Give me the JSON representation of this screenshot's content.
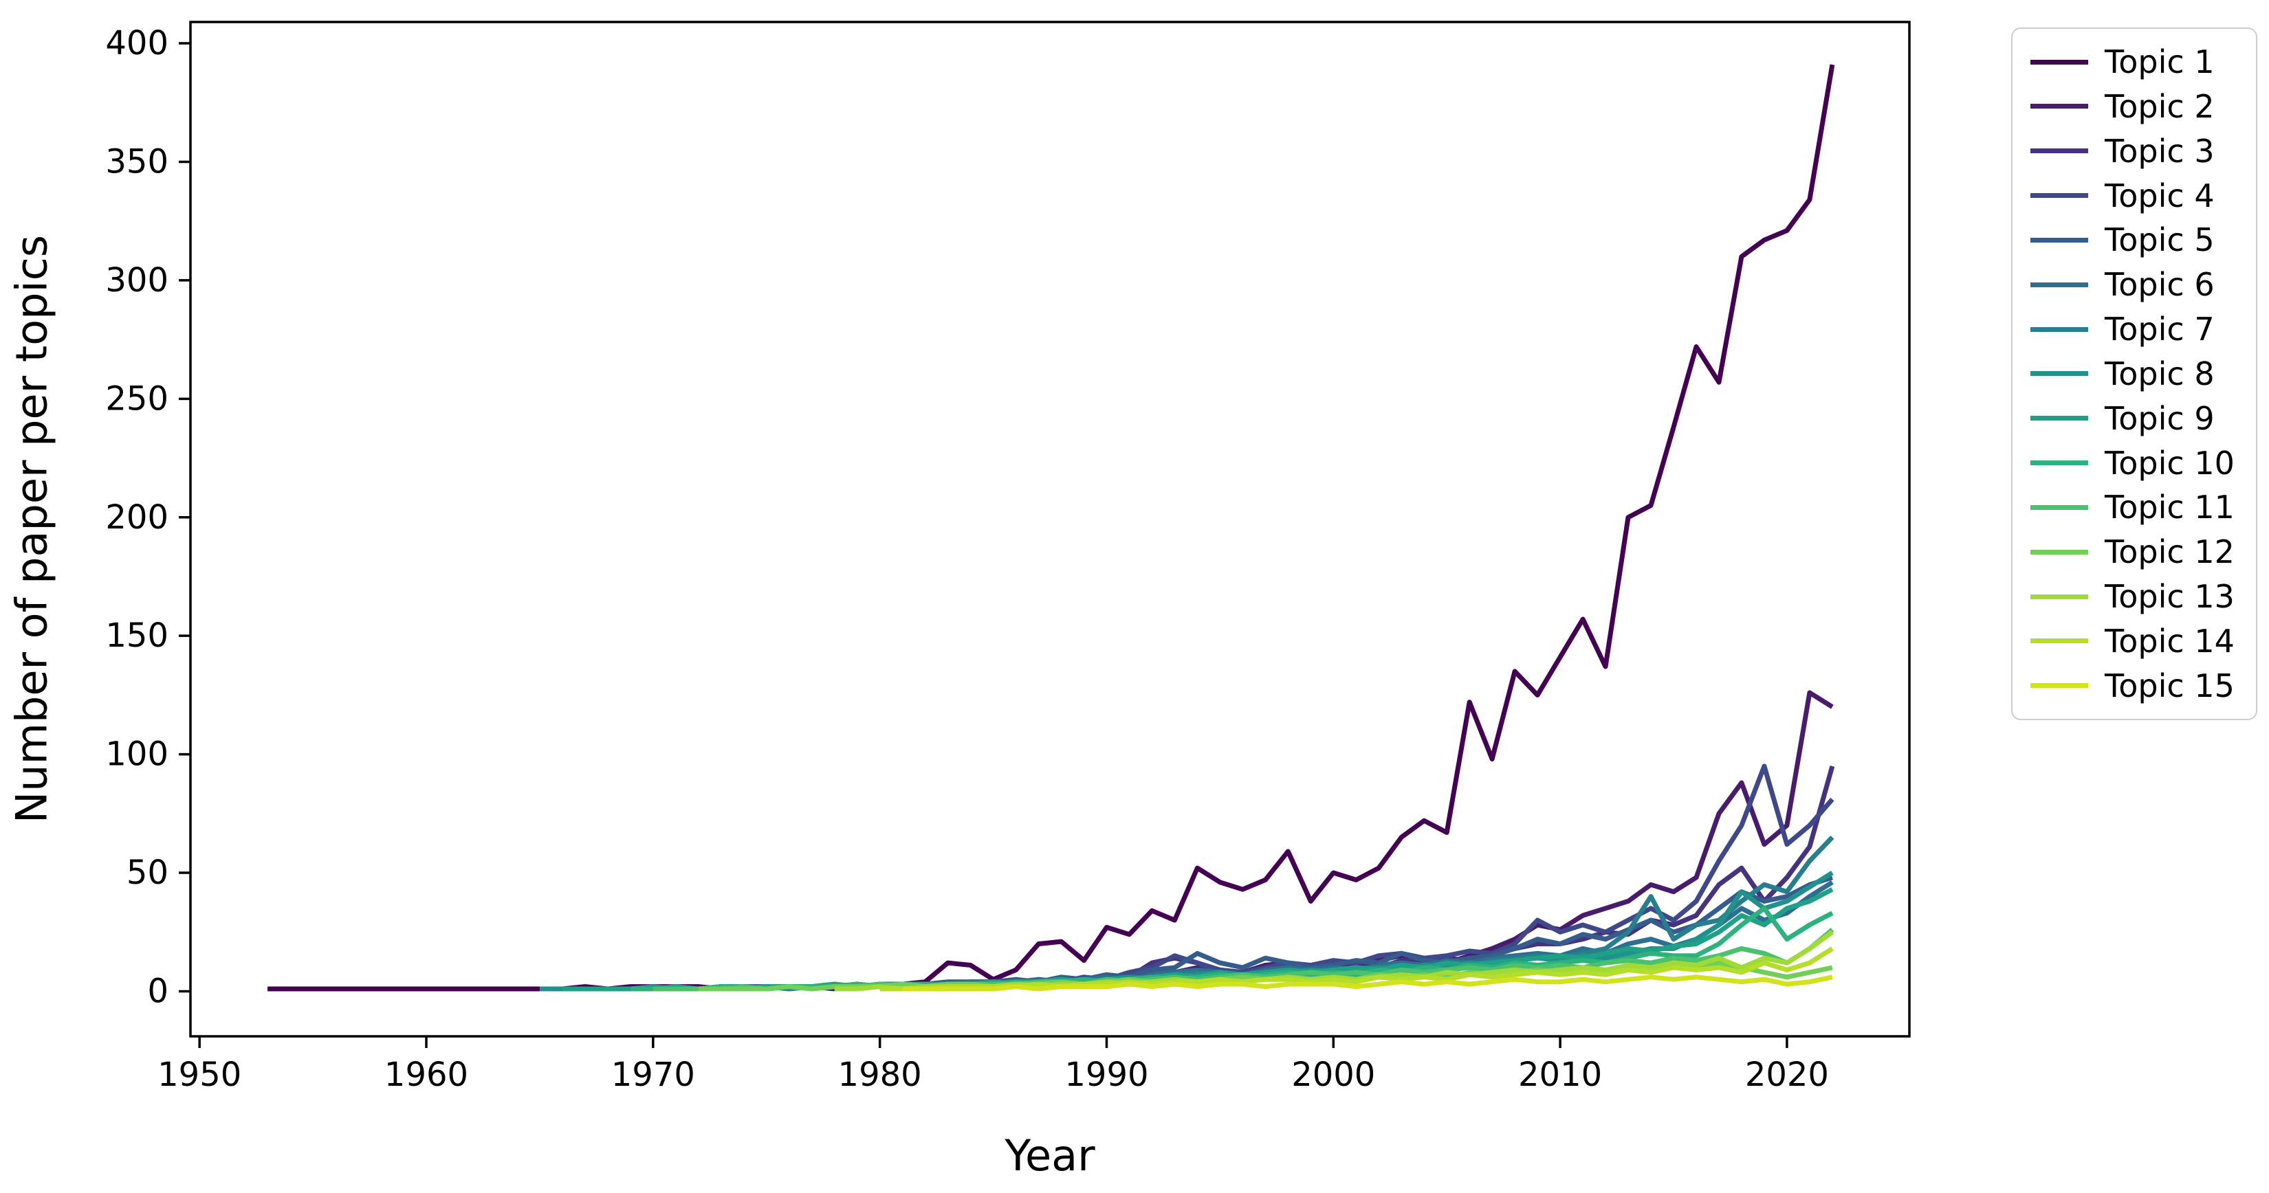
{
  "figure": {
    "background": "#ffffff",
    "axis_color": "#000000",
    "legend_border_color": "#cccccc"
  },
  "chart_data": {
    "type": "line",
    "title": "",
    "xlabel": "Year",
    "ylabel": "Number of paper per topics",
    "grid": false,
    "legend_position": "outside-right-top",
    "xlim": [
      1949.6,
      2025.4
    ],
    "ylim": [
      -19,
      409
    ],
    "xticks": [
      1950,
      1960,
      1970,
      1980,
      1990,
      2000,
      2010,
      2020
    ],
    "yticks": [
      0,
      50,
      100,
      150,
      200,
      250,
      300,
      350,
      400
    ],
    "series": [
      {
        "name": "Topic 1",
        "color": "#440154",
        "start_year": 1953,
        "values": [
          1,
          1,
          1,
          1,
          1,
          1,
          1,
          1,
          1,
          1,
          1,
          1,
          1,
          1,
          2,
          1,
          2,
          2,
          2,
          2,
          1,
          1,
          1,
          2,
          2,
          2,
          3,
          2,
          3,
          4,
          12,
          11,
          5,
          9,
          20,
          21,
          13,
          27,
          24,
          34,
          30,
          52,
          46,
          43,
          47,
          59,
          38,
          50,
          47,
          52,
          65,
          72,
          67,
          122,
          98,
          135,
          125,
          141,
          157,
          137,
          200,
          205,
          238,
          272,
          257,
          310,
          317,
          321,
          334,
          391
        ]
      },
      {
        "name": "Topic 2",
        "color": "#481b6d",
        "start_year": 1965,
        "values": [
          1,
          1,
          1,
          1,
          1,
          2,
          1,
          1,
          2,
          1,
          1,
          2,
          2,
          1,
          2,
          2,
          2,
          3,
          2,
          3,
          3,
          4,
          3,
          5,
          4,
          6,
          5,
          7,
          8,
          10,
          9,
          8,
          11,
          12,
          10,
          12,
          11,
          13,
          15,
          14,
          12,
          15,
          18,
          22,
          28,
          26,
          32,
          35,
          38,
          45,
          42,
          48,
          75,
          88,
          62,
          70,
          126,
          120
        ]
      },
      {
        "name": "Topic 3",
        "color": "#46327e",
        "start_year": 1967,
        "values": [
          1,
          1,
          1,
          1,
          2,
          1,
          1,
          2,
          1,
          2,
          2,
          2,
          2,
          3,
          2,
          2,
          3,
          3,
          3,
          4,
          4,
          5,
          4,
          5,
          6,
          12,
          14,
          12,
          6,
          7,
          8,
          9,
          10,
          9,
          11,
          10,
          13,
          12,
          14,
          13,
          16,
          18,
          20,
          20,
          22,
          25,
          24,
          30,
          28,
          32,
          45,
          52,
          38,
          48,
          61,
          95
        ]
      },
      {
        "name": "Topic 4",
        "color": "#3f4889",
        "start_year": 1968,
        "values": [
          1,
          1,
          1,
          2,
          1,
          1,
          2,
          2,
          1,
          2,
          2,
          3,
          2,
          2,
          3,
          3,
          4,
          4,
          3,
          5,
          4,
          6,
          5,
          8,
          10,
          15,
          12,
          9,
          8,
          10,
          12,
          11,
          13,
          12,
          15,
          16,
          14,
          15,
          17,
          16,
          20,
          30,
          25,
          28,
          25,
          30,
          35,
          30,
          38,
          55,
          70,
          95,
          62,
          70,
          81
        ]
      },
      {
        "name": "Topic 5",
        "color": "#365c8d",
        "start_year": 1969,
        "values": [
          1,
          1,
          1,
          1,
          2,
          1,
          2,
          2,
          2,
          3,
          2,
          3,
          3,
          3,
          4,
          4,
          4,
          5,
          4,
          6,
          5,
          7,
          6,
          9,
          10,
          16,
          12,
          10,
          14,
          12,
          10,
          11,
          13,
          12,
          16,
          13,
          12,
          14,
          15,
          18,
          22,
          20,
          24,
          22,
          26,
          30,
          25,
          28,
          35,
          42,
          38,
          40,
          45,
          48
        ]
      },
      {
        "name": "Topic 6",
        "color": "#2e6e8e",
        "start_year": 1970,
        "values": [
          1,
          1,
          1,
          2,
          1,
          1,
          2,
          2,
          2,
          3,
          2,
          3,
          3,
          3,
          4,
          3,
          4,
          5,
          4,
          5,
          6,
          5,
          7,
          8,
          9,
          8,
          7,
          9,
          10,
          9,
          10,
          9,
          11,
          12,
          11,
          13,
          12,
          14,
          15,
          16,
          15,
          18,
          16,
          20,
          22,
          19,
          22,
          28,
          35,
          30,
          33,
          40,
          46
        ]
      },
      {
        "name": "Topic 7",
        "color": "#277f8e",
        "start_year": 1971,
        "values": [
          1,
          1,
          1,
          1,
          2,
          1,
          2,
          2,
          2,
          3,
          3,
          2,
          3,
          3,
          3,
          4,
          3,
          5,
          4,
          5,
          6,
          5,
          7,
          8,
          7,
          6,
          8,
          9,
          8,
          9,
          8,
          10,
          11,
          10,
          12,
          11,
          13,
          14,
          15,
          14,
          16,
          18,
          25,
          40,
          22,
          28,
          30,
          38,
          45,
          42,
          55,
          65
        ]
      },
      {
        "name": "Topic 8",
        "color": "#21918c",
        "start_year": 1965,
        "values": [
          1,
          1,
          1,
          1,
          1,
          2,
          1,
          1,
          2,
          2,
          1,
          2,
          2,
          2,
          3,
          2,
          2,
          3,
          3,
          3,
          3,
          4,
          4,
          5,
          4,
          5,
          6,
          5,
          6,
          7,
          8,
          6,
          7,
          8,
          9,
          8,
          9,
          10,
          9,
          11,
          10,
          12,
          11,
          13,
          14,
          13,
          15,
          14,
          16,
          18,
          18,
          22,
          28,
          42,
          35,
          38,
          44,
          50
        ]
      },
      {
        "name": "Topic 9",
        "color": "#1fa187",
        "start_year": 1966,
        "values": [
          1,
          1,
          1,
          1,
          1,
          2,
          1,
          2,
          1,
          2,
          2,
          2,
          3,
          2,
          3,
          3,
          2,
          3,
          3,
          4,
          3,
          4,
          5,
          4,
          5,
          5,
          6,
          7,
          6,
          8,
          7,
          8,
          9,
          8,
          9,
          10,
          9,
          11,
          10,
          12,
          11,
          12,
          13,
          14,
          15,
          14,
          16,
          18,
          17,
          19,
          20,
          25,
          32,
          28,
          35,
          38,
          43
        ]
      },
      {
        "name": "Topic 10",
        "color": "#2db27d",
        "start_year": 1969,
        "values": [
          1,
          1,
          1,
          1,
          2,
          1,
          1,
          2,
          2,
          2,
          3,
          2,
          3,
          3,
          2,
          3,
          3,
          4,
          3,
          4,
          5,
          4,
          5,
          6,
          5,
          6,
          7,
          6,
          7,
          8,
          7,
          8,
          7,
          9,
          8,
          10,
          9,
          11,
          10,
          12,
          11,
          12,
          13,
          12,
          14,
          16,
          15,
          15,
          20,
          28,
          35,
          22,
          28,
          33
        ]
      },
      {
        "name": "Topic 11",
        "color": "#4ac16d",
        "start_year": 1970,
        "values": [
          1,
          1,
          1,
          1,
          2,
          1,
          2,
          1,
          2,
          2,
          3,
          2,
          2,
          3,
          3,
          3,
          3,
          4,
          4,
          3,
          5,
          4,
          5,
          6,
          5,
          6,
          7,
          6,
          7,
          8,
          7,
          8,
          7,
          9,
          8,
          9,
          10,
          9,
          11,
          10,
          11,
          10,
          12,
          13,
          12,
          14,
          13,
          15,
          18,
          16,
          12,
          18,
          26
        ]
      },
      {
        "name": "Topic 12",
        "color": "#70cf57",
        "start_year": 1972,
        "values": [
          1,
          1,
          1,
          1,
          2,
          1,
          2,
          2,
          2,
          3,
          2,
          3,
          3,
          2,
          3,
          3,
          4,
          3,
          4,
          5,
          4,
          5,
          4,
          5,
          6,
          5,
          6,
          5,
          6,
          5,
          7,
          6,
          7,
          6,
          8,
          7,
          8,
          9,
          8,
          9,
          8,
          10,
          9,
          11,
          10,
          12,
          10,
          8,
          6,
          8,
          10
        ]
      },
      {
        "name": "Topic 13",
        "color": "#a0da39",
        "start_year": 1978,
        "values": [
          1,
          1,
          2,
          1,
          2,
          2,
          2,
          2,
          3,
          2,
          3,
          3,
          4,
          3,
          4,
          5,
          4,
          5,
          4,
          5,
          6,
          5,
          6,
          5,
          6,
          7,
          6,
          8,
          7,
          8,
          9,
          8,
          9,
          10,
          9,
          11,
          10,
          12,
          11,
          14,
          10,
          14,
          12,
          18,
          25
        ]
      },
      {
        "name": "Topic 14",
        "color": "#b5de2b",
        "start_year": 1980,
        "values": [
          1,
          1,
          1,
          2,
          2,
          2,
          2,
          3,
          2,
          3,
          3,
          4,
          3,
          4,
          4,
          5,
          4,
          5,
          5,
          4,
          5,
          4,
          6,
          5,
          6,
          5,
          7,
          6,
          7,
          8,
          7,
          8,
          7,
          9,
          8,
          10,
          9,
          10,
          8,
          12,
          9,
          12,
          18
        ]
      },
      {
        "name": "Topic 15",
        "color": "#d2e21b",
        "start_year": 1981,
        "values": [
          1,
          1,
          1,
          1,
          1,
          2,
          1,
          2,
          2,
          2,
          3,
          2,
          3,
          2,
          3,
          3,
          2,
          3,
          3,
          3,
          2,
          3,
          4,
          3,
          4,
          3,
          4,
          5,
          4,
          4,
          5,
          4,
          5,
          6,
          5,
          6,
          5,
          4,
          5,
          3,
          4,
          6
        ]
      }
    ]
  }
}
